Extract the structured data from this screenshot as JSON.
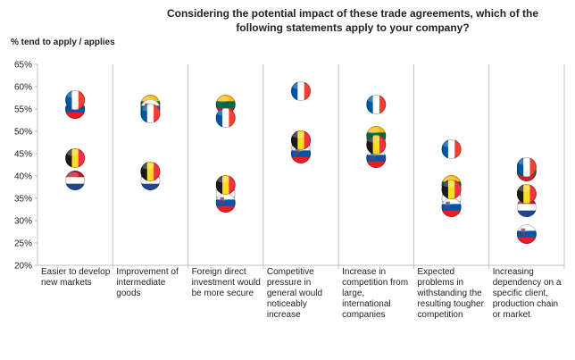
{
  "chart_data": {
    "type": "scatter",
    "title": "Considering the potential impact of these trade agreements, which of the following statements apply to your company?",
    "ylabel": "% tend to apply / applies",
    "ylim": [
      20,
      65
    ],
    "yticks": [
      "20%",
      "25%",
      "30%",
      "35%",
      "40%",
      "45%",
      "50%",
      "55%",
      "60%",
      "65%"
    ],
    "grid": "vertical separators",
    "categories": [
      "Easier to develop new markets",
      "Improvement of intermediate goods",
      "Foreign direct investment would be more secure",
      "Competitive pressure in general would noticeably increase",
      "Increase in competition from large, international companies",
      "Expected problems in withstanding the resulting tougher competition",
      "Increasing dependency on a specific client, production chain or market"
    ],
    "series": [
      {
        "flag": "france",
        "values": [
          57,
          54,
          53,
          59,
          56,
          46,
          42
        ]
      },
      {
        "flag": "lithuania",
        "values": [
          55,
          56,
          56,
          48,
          49,
          38,
          41
        ]
      },
      {
        "flag": "belgium",
        "values": [
          44,
          41,
          38,
          48,
          47,
          37,
          36
        ]
      },
      {
        "flag": "netherlands",
        "values": [
          39,
          39,
          36,
          46,
          48,
          35,
          33
        ]
      },
      {
        "flag": "slovenia",
        "values": [
          55,
          55,
          34,
          45,
          44,
          33,
          27
        ]
      }
    ],
    "flag_colors": {
      "france": [
        "#0055A4",
        "#FFFFFF",
        "#EF4135"
      ],
      "lithuania": [
        "#FDB913",
        "#006A44",
        "#C1272D"
      ],
      "belgium": [
        "#1a1a1a",
        "#FDDA24",
        "#EF3340"
      ],
      "netherlands": [
        "#AE1C28",
        "#FFFFFF",
        "#21468B"
      ],
      "slovenia": [
        "#FFFFFF",
        "#0055A4",
        "#ED1C24"
      ]
    }
  }
}
